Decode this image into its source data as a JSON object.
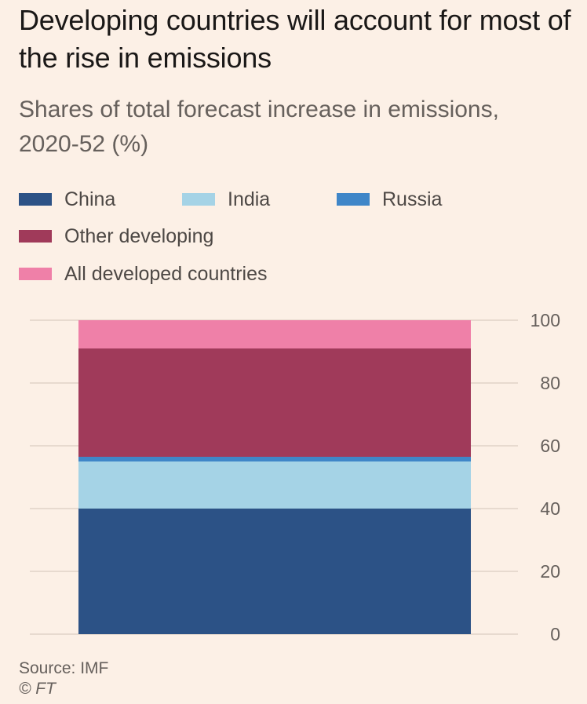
{
  "header": {
    "title": "Developing countries will account for most of the rise in emissions",
    "subtitle": "Shares of total forecast increase in emissions, 2020-52 (%)"
  },
  "legend": [
    {
      "label": "China",
      "color": "#2c5286"
    },
    {
      "label": "India",
      "color": "#a5d3e6"
    },
    {
      "label": "Russia",
      "color": "#3f86c8"
    },
    {
      "label": "Other developing",
      "color": "#a03a5a"
    },
    {
      "label": "All developed countries",
      "color": "#ef80a8"
    }
  ],
  "chart_data": {
    "type": "bar",
    "stacked": true,
    "categories": [
      ""
    ],
    "series": [
      {
        "name": "China",
        "values": [
          40
        ],
        "color": "#2c5286"
      },
      {
        "name": "India",
        "values": [
          15
        ],
        "color": "#a5d3e6"
      },
      {
        "name": "Russia",
        "values": [
          1.5
        ],
        "color": "#3f86c8"
      },
      {
        "name": "Other developing",
        "values": [
          34.5
        ],
        "color": "#a03a5a"
      },
      {
        "name": "All developed countries",
        "values": [
          9
        ],
        "color": "#ef80a8"
      }
    ],
    "ylim": [
      0,
      100
    ],
    "yticks": [
      0,
      20,
      40,
      60,
      80,
      100
    ],
    "grid": true,
    "axis_position": "right",
    "legend_position": "top"
  },
  "footer": {
    "source": "Source: IMF",
    "credit": "© FT"
  }
}
